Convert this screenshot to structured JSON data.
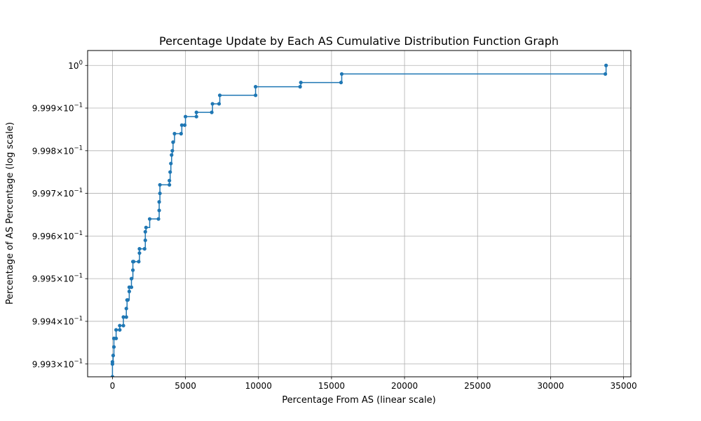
{
  "chart_data": {
    "type": "line",
    "drawstyle": "steps-post",
    "marker": "circle",
    "title": "Percentage Update by Each AS Cumulative Distribution Function Graph",
    "xlabel": "Percentage From AS (linear scale)",
    "ylabel": "Percentage of AS Percentage (log scale)",
    "xscale": "linear",
    "yscale": "log",
    "xlim": [
      -1700,
      35500
    ],
    "ylim": [
      0.99927,
      1.000035
    ],
    "grid": true,
    "line_color": "#1f77b4",
    "xticks": [
      0,
      5000,
      10000,
      15000,
      20000,
      25000,
      30000,
      35000
    ],
    "xtick_labels": [
      "0",
      "5000",
      "10000",
      "15000",
      "20000",
      "25000",
      "30000",
      "35000"
    ],
    "yticks": [
      0.9993,
      0.9994,
      0.9995,
      0.9996,
      0.9997,
      0.9998,
      0.9999,
      1.0
    ],
    "ytick_mantissas": [
      "9.993",
      "9.994",
      "9.995",
      "9.996",
      "9.997",
      "9.998",
      "9.999",
      ""
    ],
    "ytick_bases": [
      "10",
      "10",
      "10",
      "10",
      "10",
      "10",
      "10",
      "10"
    ],
    "ytick_exponents": [
      "−1",
      "−1",
      "−1",
      "−1",
      "−1",
      "−1",
      "−1",
      "0"
    ],
    "series": [
      {
        "x": [
          0,
          0,
          0,
          50,
          100,
          100,
          250,
          250,
          500,
          500,
          750,
          750,
          950,
          950,
          1000,
          1050,
          1150,
          1150,
          1300,
          1300,
          1400,
          1400,
          1450,
          1800,
          1850,
          1850,
          2200,
          2250,
          2250,
          2300,
          2550,
          3150,
          3200,
          3200,
          3250,
          3250,
          3900,
          3900,
          3950,
          4000,
          4050,
          4100,
          4150,
          4250,
          4700,
          4750,
          4950,
          5000,
          5750,
          5750,
          6800,
          6850,
          7300,
          7350,
          9800,
          9800,
          12850,
          12900,
          15650,
          15700,
          33750,
          33800
        ],
        "y": [
          0.99927,
          0.9993,
          0.999305,
          0.99932,
          0.99934,
          0.99936,
          0.99936,
          0.99938,
          0.99938,
          0.99939,
          0.99939,
          0.99941,
          0.99941,
          0.99943,
          0.99945,
          0.99945,
          0.99947,
          0.99948,
          0.99948,
          0.9995,
          0.99952,
          0.99954,
          0.99954,
          0.99954,
          0.99956,
          0.99957,
          0.99957,
          0.99959,
          0.99961,
          0.99962,
          0.99964,
          0.99964,
          0.99966,
          0.99968,
          0.9997,
          0.99972,
          0.99972,
          0.99973,
          0.99975,
          0.99977,
          0.99979,
          0.9998,
          0.99982,
          0.99984,
          0.99984,
          0.99986,
          0.99986,
          0.99988,
          0.99988,
          0.99989,
          0.99989,
          0.99991,
          0.99991,
          0.99993,
          0.99993,
          0.99995,
          0.99995,
          0.99996,
          0.99996,
          0.99998,
          0.99998,
          1.0
        ]
      }
    ]
  }
}
